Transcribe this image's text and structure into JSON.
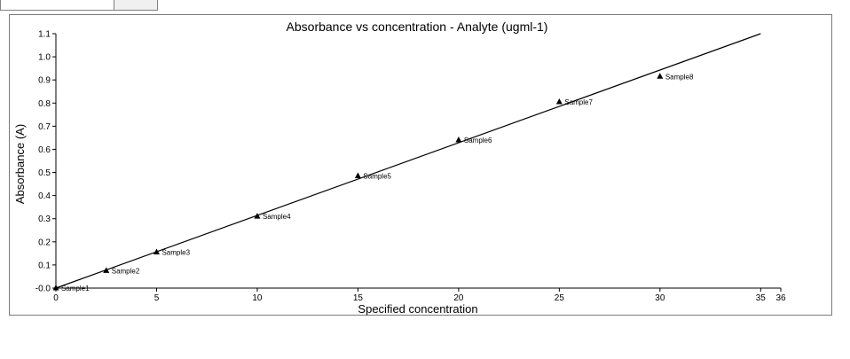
{
  "tabs": [
    {
      "label": "",
      "active": true
    },
    {
      "label": "",
      "active": false
    }
  ],
  "chart_data": {
    "type": "scatter",
    "title": "Absorbance vs concentration - Analyte (ugml-1)",
    "xlabel": "Specified concentration",
    "ylabel": "Absorbance (A)",
    "xlim": [
      0,
      36
    ],
    "ylim": [
      -0.0,
      1.1
    ],
    "xticks": [
      0,
      5,
      10,
      15,
      20,
      25,
      30,
      35,
      36
    ],
    "xtick_labels": [
      "0",
      "5",
      "10",
      "15",
      "20",
      "25",
      "30",
      "35",
      "36"
    ],
    "yticks": [
      -0.0,
      0.1,
      0.2,
      0.3,
      0.4,
      0.5,
      0.6,
      0.7,
      0.8,
      0.9,
      1.0,
      1.1
    ],
    "ytick_labels": [
      "-0.0",
      "0.1",
      "0.2",
      "0.3",
      "0.4",
      "0.5",
      "0.6",
      "0.7",
      "0.8",
      "0.9",
      "1.0",
      "1.1"
    ],
    "grid": false,
    "points": [
      {
        "label": "Sample1",
        "x": 0,
        "y": 0.0
      },
      {
        "label": "Sample2",
        "x": 2.5,
        "y": 0.075
      },
      {
        "label": "Sample3",
        "x": 5,
        "y": 0.155
      },
      {
        "label": "Sample4",
        "x": 10,
        "y": 0.31
      },
      {
        "label": "Sample5",
        "x": 15,
        "y": 0.485
      },
      {
        "label": "Sample6",
        "x": 20,
        "y": 0.64
      },
      {
        "label": "Sample7",
        "x": 25,
        "y": 0.805
      },
      {
        "label": "Sample8",
        "x": 30,
        "y": 0.915
      }
    ],
    "fit_line": {
      "x": [
        0,
        35
      ],
      "y": [
        0.0,
        1.1
      ]
    },
    "colors": {
      "line": "#000000",
      "marker": "#000000",
      "frame": "#7a7a7a"
    }
  }
}
